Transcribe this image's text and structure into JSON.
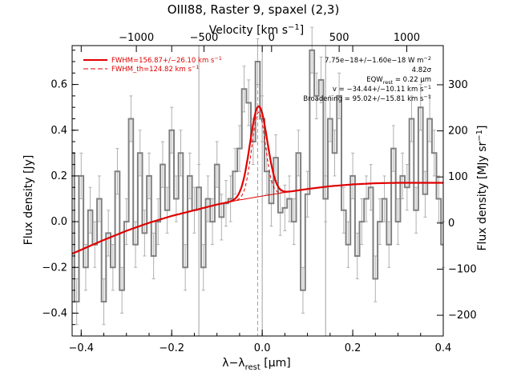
{
  "chart_data": {
    "type": "line",
    "title": "OIII88, Raster 9, spaxel (2,3)",
    "xlabel": "λ−λrest [μm]",
    "xlabel_parts": {
      "main": "λ−λ",
      "sub": "rest",
      "unit": " [μm]"
    },
    "ylabel": "Flux density [Jy]",
    "top_xlabel": "Velocity [km s⁻¹]",
    "top_xlabel_parts": {
      "main": "Velocity [km s",
      "sup": "−1",
      "close": "]"
    },
    "right_ylabel": "Flux density [MJy sr⁻¹]",
    "right_ylabel_parts": {
      "main": "Flux density [MJy sr",
      "sup": "−1",
      "close": "]"
    },
    "xlim": [
      -0.42,
      0.4
    ],
    "ylim": [
      -0.5,
      0.77
    ],
    "top_xlim": [
      -1475,
      1270
    ],
    "right_ylim": [
      -245,
      385
    ],
    "x_ticks": [
      -0.4,
      -0.2,
      0.0,
      0.2,
      0.4
    ],
    "x_tick_labels": [
      "−0.4",
      "−0.2",
      "0.0",
      "0.2",
      "0.4"
    ],
    "y_ticks": [
      -0.4,
      -0.2,
      0.0,
      0.2,
      0.4,
      0.6
    ],
    "y_tick_labels": [
      "−0.4",
      "−0.2",
      "0.0",
      "0.2",
      "0.4",
      "0.6"
    ],
    "top_ticks": [
      -1000,
      -500,
      0,
      500,
      1000
    ],
    "top_tick_labels": [
      "−1000",
      "−500",
      "0",
      "500",
      "1000"
    ],
    "right_ticks": [
      -200,
      -100,
      0,
      100,
      200,
      300
    ],
    "right_tick_labels": [
      "−200",
      "−100",
      "0",
      "100",
      "200",
      "300"
    ],
    "vertical_lines": [
      {
        "x": -0.14,
        "style": "solid"
      },
      {
        "x": -0.01,
        "style": "dashed"
      },
      {
        "x": 0.0,
        "style": "solid"
      },
      {
        "x": 0.14,
        "style": "solid"
      }
    ],
    "spectrum": {
      "x": [
        -0.42,
        -0.41,
        -0.4,
        -0.39,
        -0.38,
        -0.37,
        -0.36,
        -0.35,
        -0.34,
        -0.33,
        -0.32,
        -0.31,
        -0.3,
        -0.29,
        -0.28,
        -0.27,
        -0.26,
        -0.25,
        -0.24,
        -0.23,
        -0.22,
        -0.21,
        -0.2,
        -0.19,
        -0.18,
        -0.17,
        -0.16,
        -0.15,
        -0.14,
        -0.13,
        -0.12,
        -0.11,
        -0.1,
        -0.09,
        -0.08,
        -0.07,
        -0.06,
        -0.05,
        -0.04,
        -0.03,
        -0.02,
        -0.01,
        0.0,
        0.01,
        0.02,
        0.03,
        0.04,
        0.05,
        0.06,
        0.07,
        0.08,
        0.09,
        0.1,
        0.11,
        0.12,
        0.13,
        0.14,
        0.15,
        0.16,
        0.17,
        0.18,
        0.19,
        0.2,
        0.21,
        0.22,
        0.23,
        0.24,
        0.25,
        0.26,
        0.27,
        0.28,
        0.29,
        0.3,
        0.31,
        0.32,
        0.33,
        0.34,
        0.35,
        0.36,
        0.37,
        0.38,
        0.39,
        0.4
      ],
      "y": [
        0.3,
        -0.35,
        0.2,
        -0.2,
        0.05,
        -0.1,
        0.1,
        -0.35,
        -0.05,
        -0.2,
        0.22,
        -0.3,
        0.0,
        0.45,
        -0.1,
        0.3,
        -0.05,
        0.2,
        -0.15,
        0.0,
        0.25,
        0.05,
        0.4,
        0.1,
        0.3,
        -0.2,
        0.2,
        0.05,
        0.15,
        -0.2,
        0.1,
        0.0,
        0.25,
        0.02,
        0.08,
        0.1,
        0.22,
        0.32,
        0.58,
        0.52,
        0.35,
        0.7,
        0.45,
        0.22,
        0.08,
        0.28,
        0.04,
        0.06,
        0.1,
        0.0,
        0.3,
        -0.3,
        0.12,
        0.75,
        0.55,
        0.62,
        0.1,
        0.45,
        0.3,
        0.55,
        0.05,
        -0.1,
        0.2,
        -0.15,
        0.0,
        0.1,
        0.15,
        -0.25,
        0.0,
        0.1,
        -0.1,
        0.32,
        0.0,
        0.2,
        0.15,
        0.45,
        0.05,
        0.5,
        0.12,
        0.45,
        0.3,
        0.1,
        -0.1
      ],
      "yerr": 0.1
    },
    "baseline": {
      "x": [
        -0.42,
        -0.35,
        -0.3,
        -0.25,
        -0.2,
        -0.15,
        -0.1,
        -0.05,
        0.0,
        0.05,
        0.1,
        0.15,
        0.2,
        0.25,
        0.3,
        0.35,
        0.4
      ],
      "y": [
        -0.14,
        -0.08,
        -0.04,
        -0.005,
        0.025,
        0.05,
        0.075,
        0.095,
        0.112,
        0.128,
        0.143,
        0.155,
        0.163,
        0.168,
        0.17,
        0.17,
        0.17
      ]
    },
    "gaussian_fit": {
      "center": -0.008,
      "sigma": 0.019,
      "amplitude": 0.395
    },
    "gaussian_th": {
      "center": -0.008,
      "sigma": 0.015,
      "amplitude": 0.37
    },
    "fit_x_range": [
      -0.08,
      0.06
    ],
    "legend": {
      "position": "top-left",
      "entries": [
        {
          "label": "FWHM=156.87+/−26.10 km s",
          "sup": "−1",
          "color": "#e00000",
          "style": "solid"
        },
        {
          "label": "FWHM_th=124.82 km s",
          "sup": "−1",
          "color": "#e00000",
          "style": "dashed"
        }
      ]
    },
    "annotations": [
      {
        "main": "7.75e−18+/−1.60e−18 W m",
        "sup": "−2"
      },
      {
        "main": "4.82σ"
      },
      {
        "main": "EQW",
        "sub": "rest",
        "rest": " = 0.22 μm"
      },
      {
        "main": "v = −34.44+/−10.11 km s",
        "sup": "−1"
      },
      {
        "main": "Broadening = 95.02+/−15.81 km s",
        "sup": "−1"
      }
    ],
    "colors": {
      "data": "#808080",
      "fit": "#e00000",
      "grid": "#a0a0a0"
    }
  }
}
